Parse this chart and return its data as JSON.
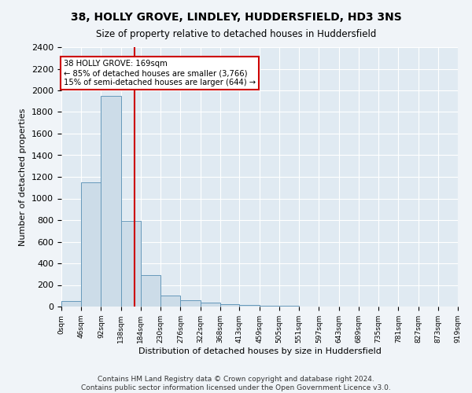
{
  "title": "38, HOLLY GROVE, LINDLEY, HUDDERSFIELD, HD3 3NS",
  "subtitle": "Size of property relative to detached houses in Huddersfield",
  "xlabel": "Distribution of detached houses by size in Huddersfield",
  "ylabel": "Number of detached properties",
  "bin_edges": [
    0,
    46,
    92,
    138,
    184,
    230,
    276,
    322,
    368,
    413,
    459,
    505,
    551,
    597,
    643,
    689,
    735,
    781,
    827,
    873,
    919
  ],
  "bar_heights": [
    50,
    1150,
    1950,
    790,
    290,
    100,
    60,
    40,
    25,
    15,
    10,
    5,
    3,
    2,
    1,
    1,
    1,
    0,
    0,
    0
  ],
  "bar_color": "#ccdce8",
  "bar_edgecolor": "#6699bb",
  "property_size": 169,
  "property_line_color": "#cc0000",
  "annotation_text": "38 HOLLY GROVE: 169sqm\n← 85% of detached houses are smaller (3,766)\n15% of semi-detached houses are larger (644) →",
  "annotation_box_color": "#ffffff",
  "annotation_box_edgecolor": "#cc0000",
  "ylim": [
    0,
    2400
  ],
  "yticks": [
    0,
    200,
    400,
    600,
    800,
    1000,
    1200,
    1400,
    1600,
    1800,
    2000,
    2200,
    2400
  ],
  "tick_labels": [
    "0sqm",
    "46sqm",
    "92sqm",
    "138sqm",
    "184sqm",
    "230sqm",
    "276sqm",
    "322sqm",
    "368sqm",
    "413sqm",
    "459sqm",
    "505sqm",
    "551sqm",
    "597sqm",
    "643sqm",
    "689sqm",
    "735sqm",
    "781sqm",
    "827sqm",
    "873sqm",
    "919sqm"
  ],
  "footer_line1": "Contains HM Land Registry data © Crown copyright and database right 2024.",
  "footer_line2": "Contains public sector information licensed under the Open Government Licence v3.0.",
  "bg_color": "#f0f4f8",
  "plot_bg_color": "#e0eaf2"
}
